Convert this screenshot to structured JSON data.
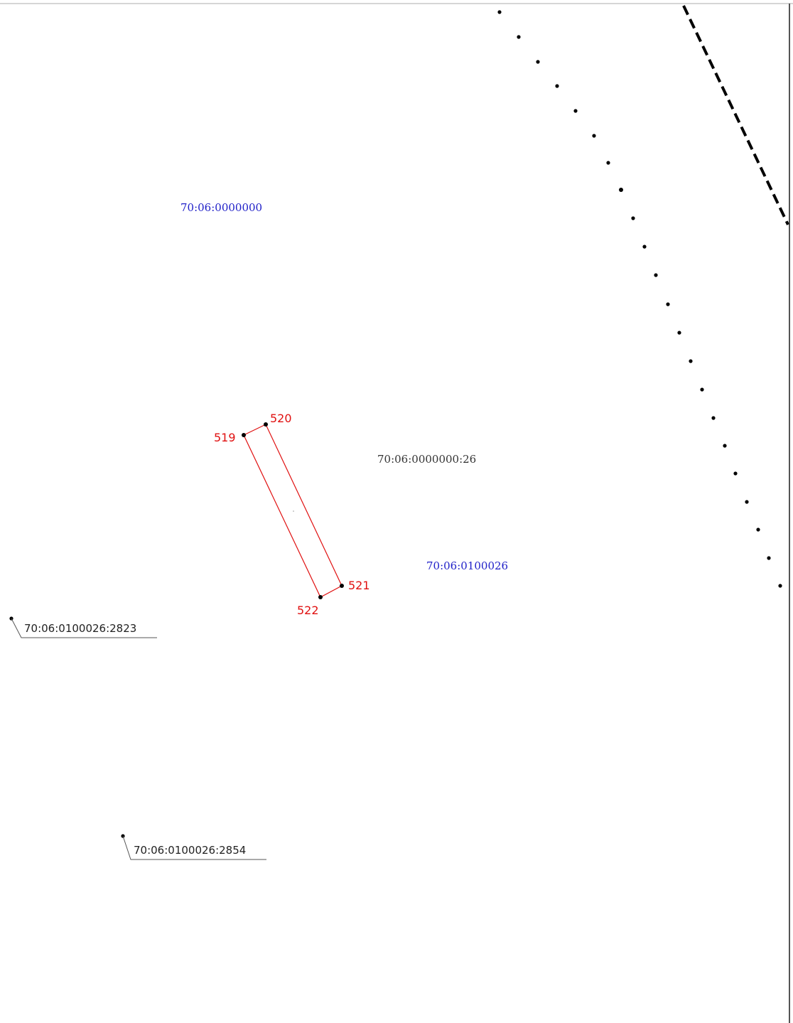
{
  "quarters": {
    "q1": "70:06:0000000",
    "q2": "70:06:0100026"
  },
  "parcels": {
    "p26": "70:06:0000000:26",
    "p2823": "70:06:0100026:2823",
    "p2854": "70:06:0100026:2854"
  },
  "points": {
    "p519": "519",
    "p520": "520",
    "p521": "521",
    "p522": "522"
  },
  "colors": {
    "boundary": "#e01010",
    "quarter_label": "#2020c8",
    "line": "#000000"
  }
}
